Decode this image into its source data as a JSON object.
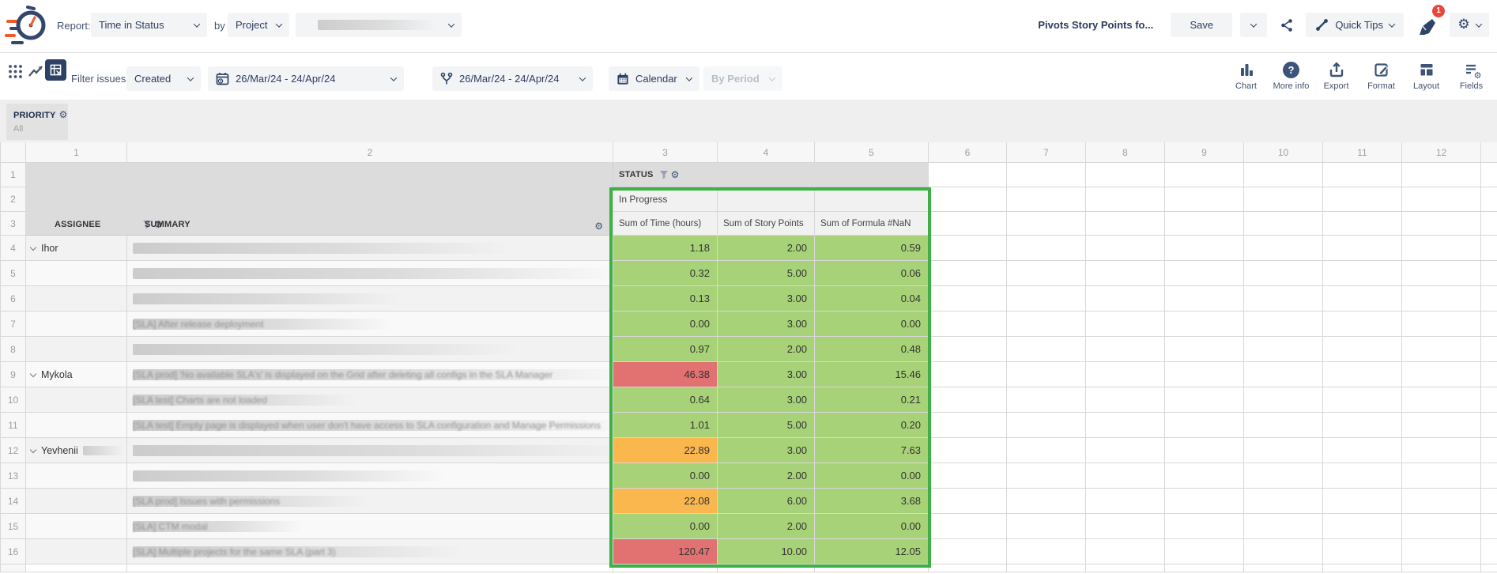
{
  "header": {
    "report_label": "Report:",
    "report_type": "Time in Status",
    "by_label": "by",
    "group_by": "Project",
    "report_title": "Pivots Story Points fo...",
    "save_label": "Save",
    "quick_tips_label": "Quick Tips",
    "notification_count": "1"
  },
  "toolbar": {
    "filter_label": "Filter issues:",
    "filter_value": "Created",
    "date_range_created": "26/Mar/24 - 24/Apr/24",
    "date_range_status": "26/Mar/24 - 24/Apr/24",
    "calendar_label": "Calendar",
    "by_period_label": "By Period",
    "actions": [
      "Chart",
      "More info",
      "Export",
      "Format",
      "Layout",
      "Fields"
    ]
  },
  "priority": {
    "label": "PRIORITY",
    "value": "All"
  },
  "pivot": {
    "column_numbers": [
      "1",
      "2",
      "3",
      "4",
      "5",
      "6",
      "7",
      "8",
      "9",
      "10",
      "11",
      "12"
    ],
    "status_header": "STATUS",
    "status_value": "In Progress",
    "assignee_header": "ASSIGNEE",
    "summary_header": "SUMMARY",
    "measure_headers": [
      "Sum of Time (hours)",
      "Sum of Story Points",
      "Sum of Formula #NaN"
    ],
    "rows": [
      {
        "num": 4,
        "assignee": "Ihor",
        "summary": "",
        "redacted_width": 480,
        "time": "1.18",
        "time_level": "green",
        "points": "2.00",
        "formula": "0.59"
      },
      {
        "num": 5,
        "assignee": "",
        "summary": "",
        "redacted_width": 615,
        "time": "0.32",
        "time_level": "green",
        "points": "5.00",
        "formula": "0.06"
      },
      {
        "num": 6,
        "assignee": "",
        "summary": "",
        "redacted_width": 340,
        "time": "0.13",
        "time_level": "green",
        "points": "3.00",
        "formula": "0.04"
      },
      {
        "num": 7,
        "assignee": "",
        "summary": "[SLA] After release deployment",
        "redacted_width": 330,
        "time": "0.00",
        "time_level": "green",
        "points": "3.00",
        "formula": "0.00"
      },
      {
        "num": 8,
        "assignee": "",
        "summary": "",
        "redacted_width": 490,
        "time": "0.97",
        "time_level": "green",
        "points": "2.00",
        "formula": "0.48"
      },
      {
        "num": 9,
        "assignee": "Mykola",
        "summary": "[SLA prod] 'No available SLA's' is displayed on the Grid after deleting all configs in the SLA Manager",
        "redacted_width": 633,
        "time": "46.38",
        "time_level": "red",
        "points": "3.00",
        "formula": "15.46"
      },
      {
        "num": 10,
        "assignee": "",
        "summary": "[SLA test] Charts are not loaded",
        "redacted_width": 285,
        "time": "0.64",
        "time_level": "green",
        "points": "3.00",
        "formula": "0.21"
      },
      {
        "num": 11,
        "assignee": "",
        "summary": "[SLA test] Empty page is displayed when user don't have access to SLA configuration and Manage Permissions",
        "redacted_width": 633,
        "time": "1.01",
        "time_level": "green",
        "points": "5.00",
        "formula": "0.20"
      },
      {
        "num": 12,
        "assignee": "Yevhenii",
        "assignee_redacted": true,
        "summary": "",
        "redacted_width": 633,
        "time": "22.89",
        "time_level": "orange",
        "points": "3.00",
        "formula": "7.63"
      },
      {
        "num": 13,
        "assignee": "",
        "summary": "",
        "redacted_width": 395,
        "time": "0.00",
        "time_level": "green",
        "points": "2.00",
        "formula": "0.00"
      },
      {
        "num": 14,
        "assignee": "",
        "summary": "[SLA prod] Issues with permissions",
        "redacted_width": 300,
        "time": "22.08",
        "time_level": "orange",
        "points": "6.00",
        "formula": "3.68"
      },
      {
        "num": 15,
        "assignee": "",
        "summary": "[SLA] CTM modal",
        "redacted_width": 215,
        "time": "0.00",
        "time_level": "green",
        "points": "2.00",
        "formula": "0.00"
      },
      {
        "num": 16,
        "assignee": "",
        "summary": "[SLA] Multiple projects for the same SLA (part 3)",
        "redacted_width": 420,
        "time": "120.47",
        "time_level": "red",
        "points": "10.00",
        "formula": "12.05"
      }
    ]
  },
  "colors": {
    "green_cell": "#a8d278",
    "orange_cell": "#fab74d",
    "red_cell": "#e27171",
    "selection_border": "#3eb044",
    "accent_navy": "#2e4466",
    "badge_red": "#e5483f"
  }
}
